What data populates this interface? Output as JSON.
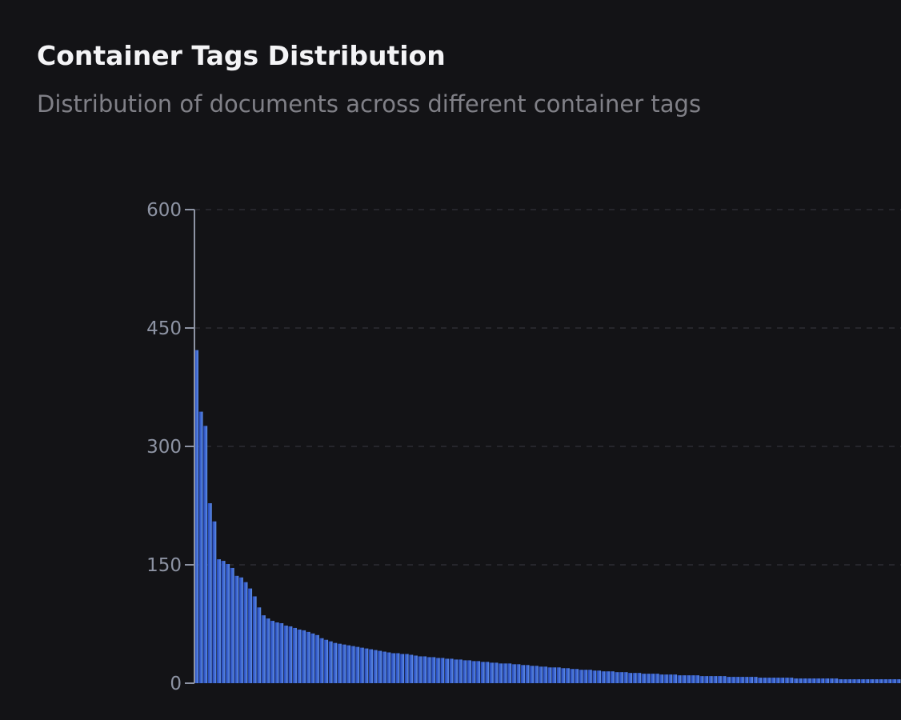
{
  "header": {
    "title": "Container Tags Distribution",
    "subtitle": "Distribution of documents across different container tags"
  },
  "colors": {
    "background": "#131316",
    "bar_dark": "#1f43b8",
    "bar_light": "#5f8ee8",
    "axis": "#8d93a3",
    "grid": "#2c2c33"
  },
  "chart_data": {
    "type": "bar",
    "ylim": [
      0,
      600
    ],
    "yticks": [
      "0",
      "150",
      "300",
      "450",
      "600"
    ],
    "ytick_values": [
      0,
      150,
      300,
      450,
      600
    ],
    "grid": true,
    "legend": "none",
    "values": [
      422,
      344,
      326,
      228,
      205,
      157,
      155,
      151,
      146,
      136,
      134,
      128,
      120,
      110,
      96,
      86,
      82,
      79,
      77,
      76,
      73,
      72,
      70,
      68,
      67,
      65,
      63,
      61,
      57,
      55,
      53,
      51,
      50,
      49,
      48,
      47,
      46,
      45,
      44,
      43,
      42,
      41,
      40,
      39,
      38,
      38,
      37,
      37,
      36,
      35,
      34,
      34,
      33,
      33,
      32,
      32,
      31,
      31,
      30,
      30,
      29,
      29,
      28,
      28,
      27,
      27,
      26,
      26,
      25,
      25,
      25,
      24,
      24,
      23,
      23,
      22,
      22,
      21,
      21,
      20,
      20,
      20,
      19,
      19,
      18,
      18,
      17,
      17,
      17,
      16,
      16,
      15,
      15,
      15,
      14,
      14,
      14,
      13,
      13,
      13,
      12,
      12,
      12,
      12,
      11,
      11,
      11,
      11,
      10,
      10,
      10,
      10,
      10,
      9,
      9,
      9,
      9,
      9,
      9,
      8,
      8,
      8,
      8,
      8,
      8,
      8,
      7,
      7,
      7,
      7,
      7,
      7,
      7,
      7,
      6,
      6,
      6,
      6,
      6,
      6,
      6,
      6,
      6,
      6,
      5,
      5,
      5,
      5,
      5,
      5,
      5,
      5,
      5,
      5,
      5,
      5,
      5,
      5
    ]
  }
}
